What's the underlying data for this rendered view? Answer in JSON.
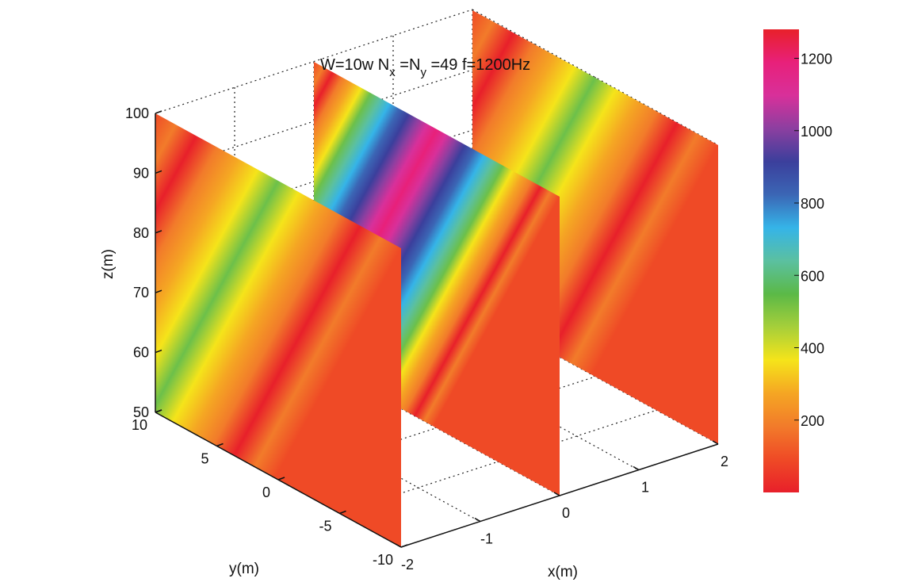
{
  "chart_data": {
    "type": "heatmap",
    "title": {
      "prefix": "W=10w N",
      "sub1": "x",
      "mid": " =N",
      "sub2": "y",
      "suffix": " =49 f=1200Hz"
    },
    "xlabel": "x(m)",
    "ylabel": "y(m)",
    "zlabel": "z(m)",
    "x_ticks": [
      "-2",
      "-1",
      "0",
      "1",
      "2"
    ],
    "y_ticks": [
      "10",
      "5",
      "0",
      "-5",
      "-10"
    ],
    "z_ticks": [
      "100",
      "90",
      "80",
      "70",
      "60",
      "50"
    ],
    "xlim": [
      -2,
      2
    ],
    "ylim": [
      -10,
      10
    ],
    "zlim": [
      50,
      100
    ],
    "grid": true,
    "colorbar": {
      "ticks": [
        "1200",
        "1000",
        "800",
        "600",
        "400",
        "200"
      ],
      "range": [
        0,
        1280
      ]
    },
    "slices": [
      {
        "name": "x = -2",
        "x": -2,
        "peak_value": 550,
        "band_count": 6
      },
      {
        "name": "x = 0",
        "x": 0,
        "peak_value": 1200,
        "band_count": 6
      },
      {
        "name": "x = 2",
        "x": 2,
        "peak_value": 550,
        "band_count": 6
      }
    ]
  },
  "colors": {
    "colormap": [
      "#e8202a",
      "#ef4a26",
      "#f27b2a",
      "#f5a623",
      "#f5e41a",
      "#a6cf3a",
      "#5bb947",
      "#5bc0a0",
      "#35b4e8",
      "#3b66b5",
      "#3b3f9c",
      "#8c3fa0",
      "#d8309a",
      "#e8207a",
      "#e8202a"
    ]
  }
}
